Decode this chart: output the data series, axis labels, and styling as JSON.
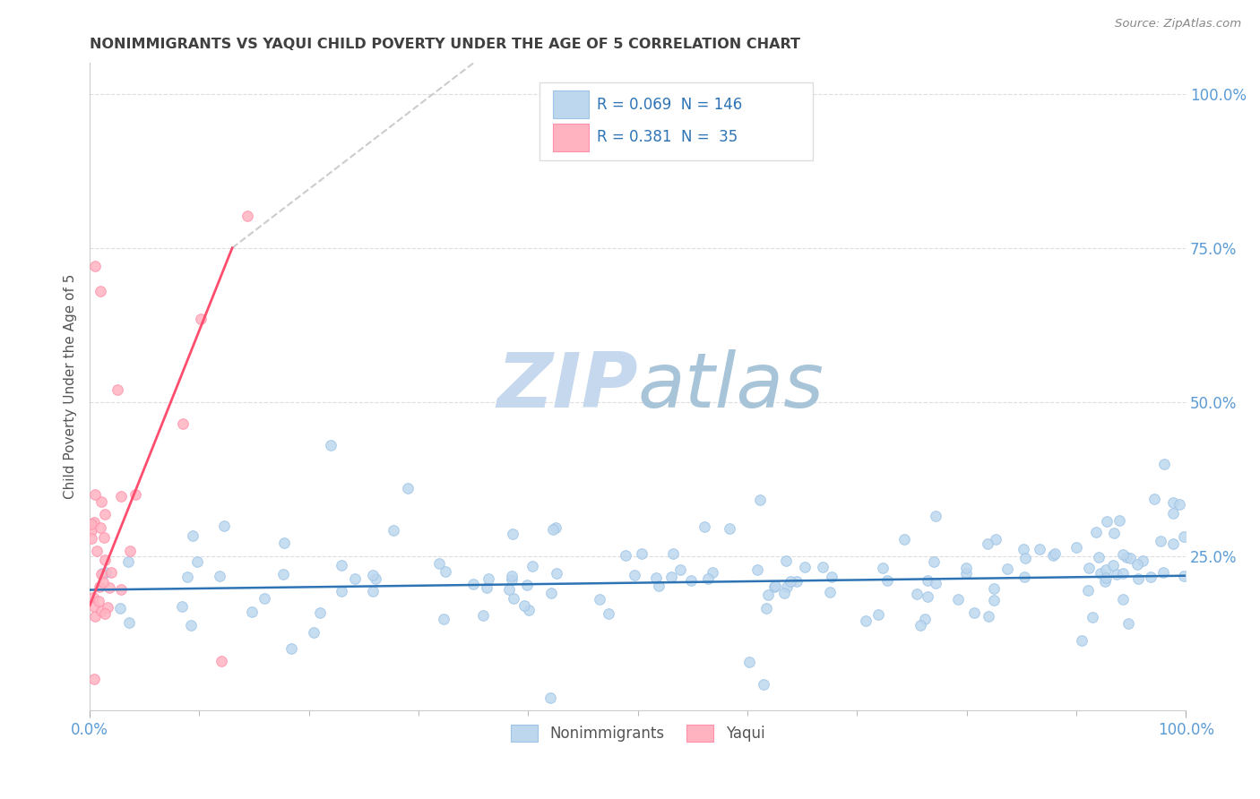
{
  "title": "NONIMMIGRANTS VS YAQUI CHILD POVERTY UNDER THE AGE OF 5 CORRELATION CHART",
  "source": "Source: ZipAtlas.com",
  "ylabel": "Child Poverty Under the Age of 5",
  "legend_nonimmigrants": "Nonimmigrants",
  "legend_yaqui": "Yaqui",
  "R_nonimmigrants": 0.069,
  "N_nonimmigrants": 146,
  "R_yaqui": 0.381,
  "N_yaqui": 35,
  "blue_fill": "#BDD7EE",
  "blue_edge": "#9DC3E6",
  "pink_fill": "#FFB3C1",
  "pink_edge": "#FF8FAB",
  "trend_blue": "#2E74B5",
  "trend_pink": "#FF4D6D",
  "trend_dash": "#CCCCCC",
  "axis_tick_color": "#5B9BD5",
  "grid_color": "#DDDDDD",
  "title_color": "#404040",
  "source_color": "#888888",
  "watermark_zip_color": "#C5D8EE",
  "watermark_atlas_color": "#A8C4D8",
  "background": "#FFFFFF",
  "legend_text_color": "#2E74B5",
  "legend_rn_color": "#333333"
}
